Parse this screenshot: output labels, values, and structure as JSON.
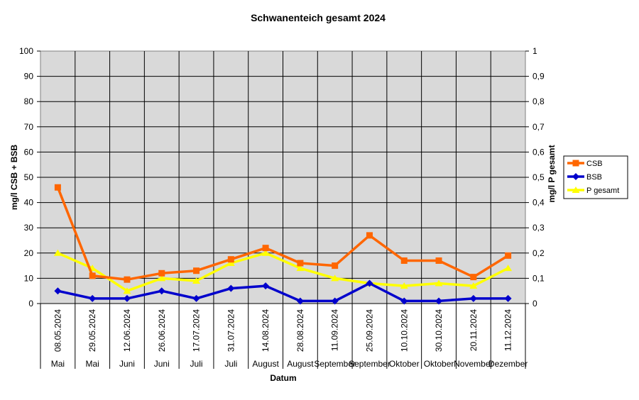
{
  "chart_data": {
    "type": "line",
    "title": "Schwanenteich gesamt 2024",
    "xlabel": "Datum",
    "ylabel": "mg/l CSB + BSB",
    "y2label": "mg/l P gesamt",
    "ylim": [
      0,
      100
    ],
    "y2lim": [
      0,
      1
    ],
    "yticks": [
      "0",
      "10",
      "20",
      "30",
      "40",
      "50",
      "60",
      "70",
      "80",
      "90",
      "100"
    ],
    "y2ticks": [
      "0",
      "0,1",
      "0,2",
      "0,3",
      "0,4",
      "0,5",
      "0,6",
      "0,7",
      "0,8",
      "0,9",
      "1"
    ],
    "grid": true,
    "legend_position": "right",
    "dates": [
      "08.05.2024",
      "29.05.2024",
      "12.06.2024",
      "26.06.2024",
      "17.07.2024",
      "31.07.2024",
      "14.08.2024",
      "28.08.2024",
      "11.09.2024",
      "25.09.2024",
      "10.10.2024",
      "30.10.2024",
      "20.11.2024",
      "11.12.2024"
    ],
    "months": [
      "Mai",
      "Mai",
      "Juni",
      "Juni",
      "Juli",
      "Juli",
      "August",
      "August",
      "September",
      "September",
      "Oktober",
      "Oktober",
      "November",
      "Dezember"
    ],
    "series": [
      {
        "name": "CSB",
        "axis": "left",
        "color": "#FF6600",
        "marker": "square",
        "values": [
          46,
          11,
          9.5,
          12,
          13,
          17.5,
          22,
          16,
          15,
          27,
          17,
          17,
          10.5,
          19
        ]
      },
      {
        "name": "BSB",
        "axis": "left",
        "color": "#0000CC",
        "marker": "diamond",
        "values": [
          5,
          2,
          2,
          5,
          2,
          6,
          7,
          1,
          1,
          8,
          1,
          1,
          2,
          2
        ]
      },
      {
        "name": "P gesamt",
        "axis": "right",
        "color": "#FFFF00",
        "marker": "triangle",
        "values": [
          0.2,
          0.14,
          0.05,
          0.1,
          0.09,
          0.16,
          0.2,
          0.14,
          0.1,
          0.08,
          0.07,
          0.08,
          0.07,
          0.14
        ]
      }
    ]
  }
}
